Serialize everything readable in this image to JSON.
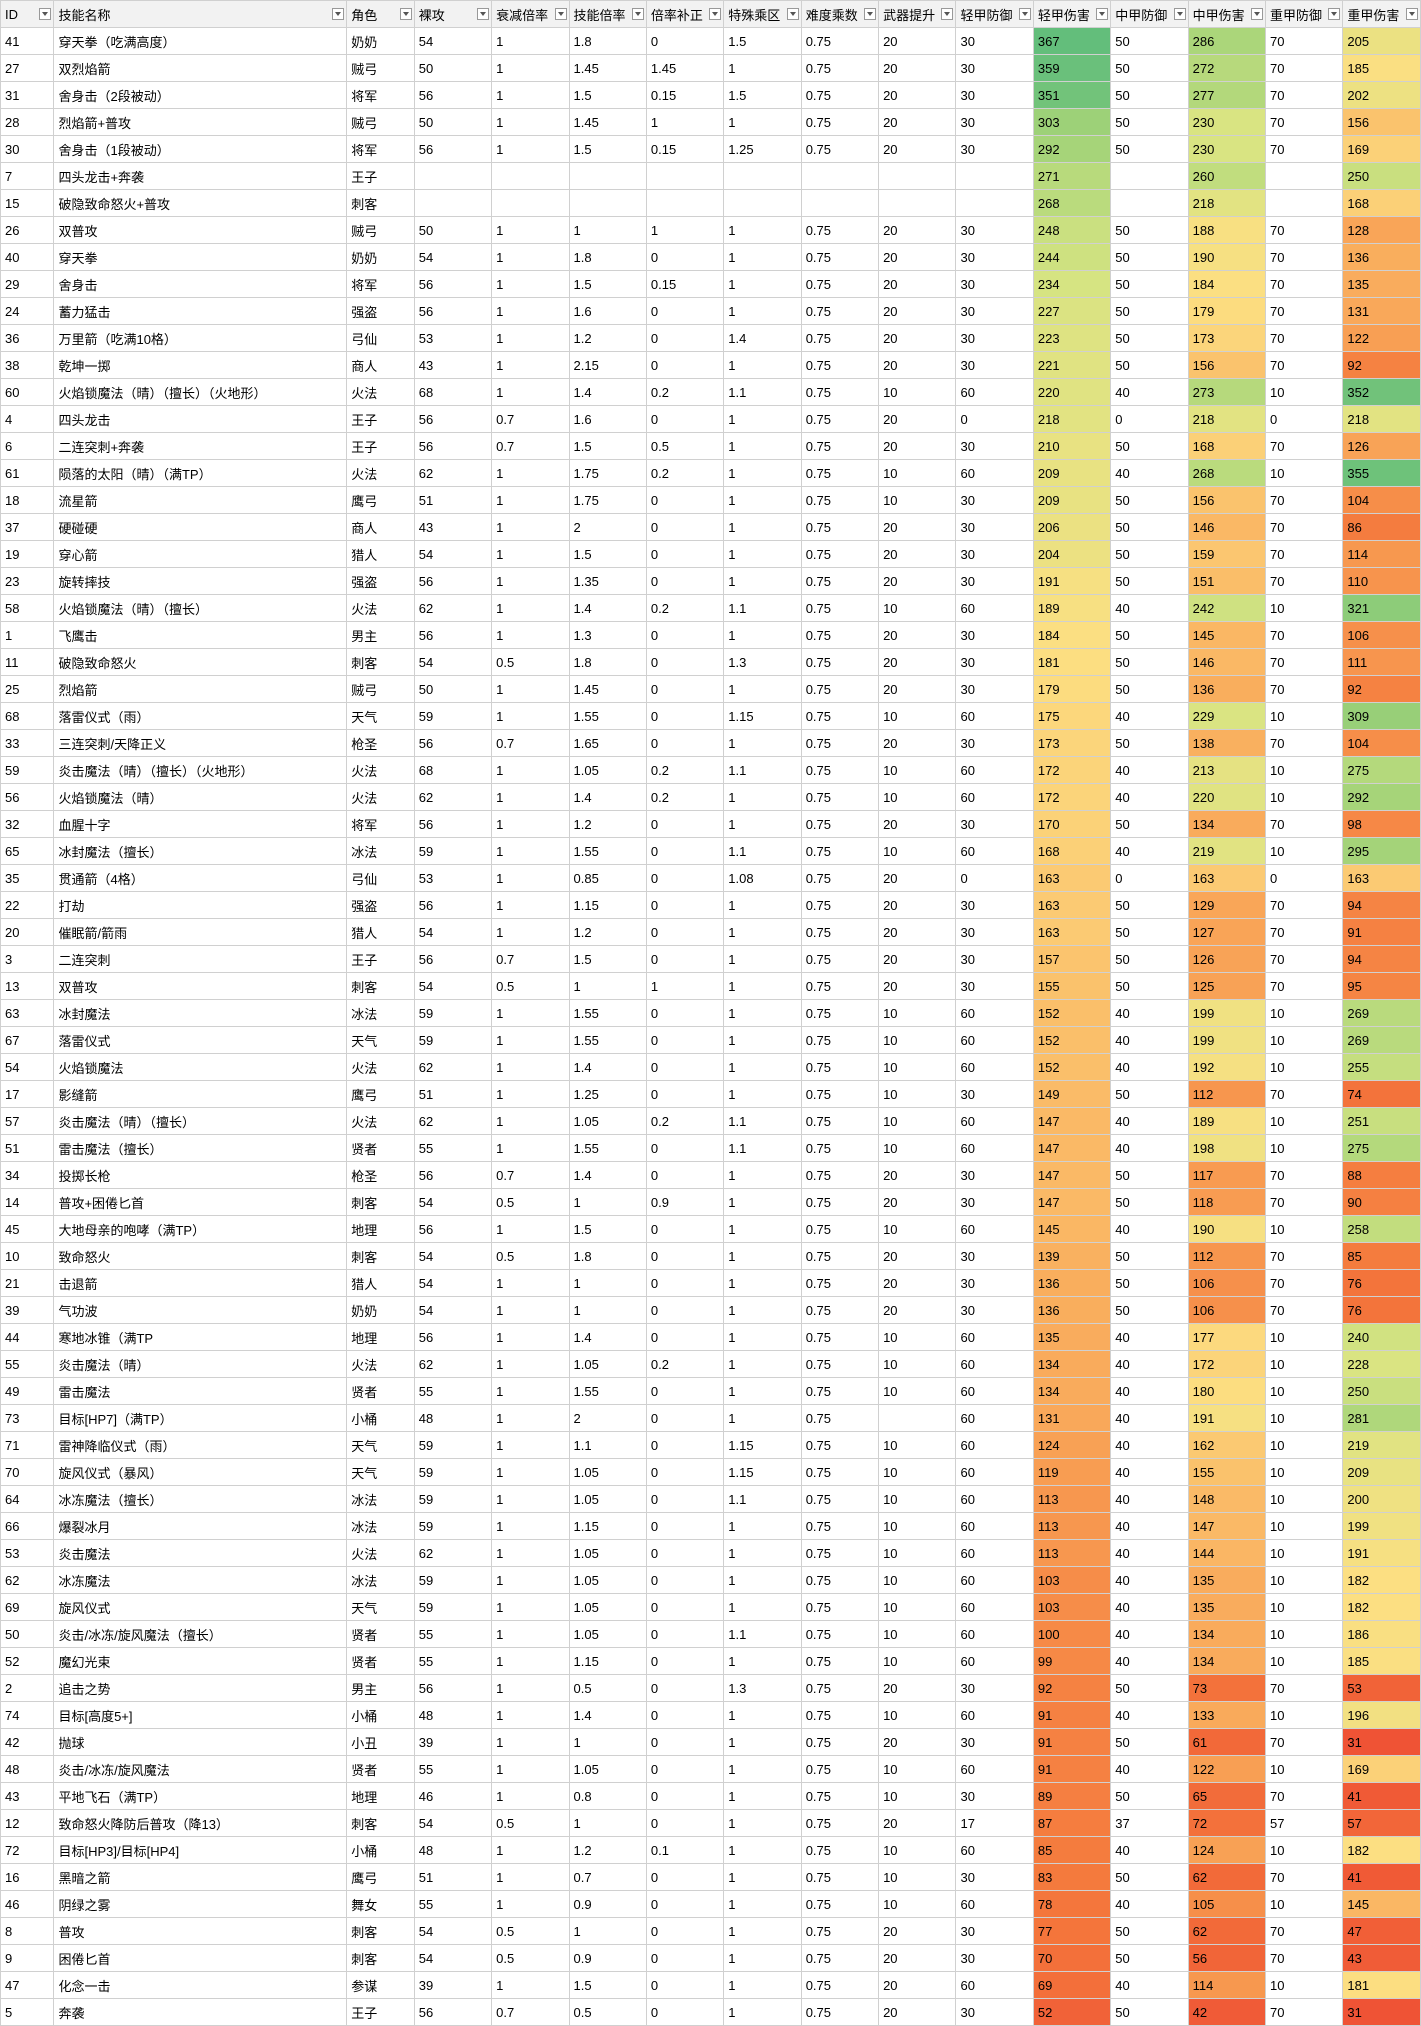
{
  "columns": [
    "ID",
    "技能名称",
    "角色",
    "裸攻",
    "衰减倍率",
    "技能倍率",
    "倍率补正",
    "特殊乘区",
    "难度乘数",
    "武器提升",
    "轻甲防御",
    "轻甲伤害",
    "中甲防御",
    "中甲伤害",
    "重甲防御",
    "重甲伤害"
  ],
  "rows": [
    [
      "41",
      "穿天拳（吃满高度）",
      "奶奶",
      "54",
      "1",
      "1.8",
      "0",
      "1.5",
      "0.75",
      "20",
      "30",
      "367",
      "50",
      "286",
      "70",
      "205"
    ],
    [
      "27",
      "双烈焰箭",
      "贼弓",
      "50",
      "1",
      "1.45",
      "1.45",
      "1",
      "0.75",
      "20",
      "30",
      "359",
      "50",
      "272",
      "70",
      "185"
    ],
    [
      "31",
      "舍身击（2段被动）",
      "将军",
      "56",
      "1",
      "1.5",
      "0.15",
      "1.5",
      "0.75",
      "20",
      "30",
      "351",
      "50",
      "277",
      "70",
      "202"
    ],
    [
      "28",
      "烈焰箭+普攻",
      "贼弓",
      "50",
      "1",
      "1.45",
      "1",
      "1",
      "0.75",
      "20",
      "30",
      "303",
      "50",
      "230",
      "70",
      "156"
    ],
    [
      "30",
      "舍身击（1段被动）",
      "将军",
      "56",
      "1",
      "1.5",
      "0.15",
      "1.25",
      "0.75",
      "20",
      "30",
      "292",
      "50",
      "230",
      "70",
      "169"
    ],
    [
      "7",
      "四头龙击+奔袭",
      "王子",
      "",
      "",
      "",
      "",
      "",
      "",
      "",
      "",
      "271",
      "",
      "260",
      "",
      "250"
    ],
    [
      "15",
      "破隐致命怒火+普攻",
      "刺客",
      "",
      "",
      "",
      "",
      "",
      "",
      "",
      "",
      "268",
      "",
      "218",
      "",
      "168"
    ],
    [
      "26",
      "双普攻",
      "贼弓",
      "50",
      "1",
      "1",
      "1",
      "1",
      "0.75",
      "20",
      "30",
      "248",
      "50",
      "188",
      "70",
      "128"
    ],
    [
      "40",
      "穿天拳",
      "奶奶",
      "54",
      "1",
      "1.8",
      "0",
      "1",
      "0.75",
      "20",
      "30",
      "244",
      "50",
      "190",
      "70",
      "136"
    ],
    [
      "29",
      "舍身击",
      "将军",
      "56",
      "1",
      "1.5",
      "0.15",
      "1",
      "0.75",
      "20",
      "30",
      "234",
      "50",
      "184",
      "70",
      "135"
    ],
    [
      "24",
      "蓄力猛击",
      "强盗",
      "56",
      "1",
      "1.6",
      "0",
      "1",
      "0.75",
      "20",
      "30",
      "227",
      "50",
      "179",
      "70",
      "131"
    ],
    [
      "36",
      "万里箭（吃满10格）",
      "弓仙",
      "53",
      "1",
      "1.2",
      "0",
      "1.4",
      "0.75",
      "20",
      "30",
      "223",
      "50",
      "173",
      "70",
      "122"
    ],
    [
      "38",
      "乾坤一掷",
      "商人",
      "43",
      "1",
      "2.15",
      "0",
      "1",
      "0.75",
      "20",
      "30",
      "221",
      "50",
      "156",
      "70",
      "92"
    ],
    [
      "60",
      "火焰锁魔法（晴）（擅长）（火地形）",
      "火法",
      "68",
      "1",
      "1.4",
      "0.2",
      "1.1",
      "0.75",
      "10",
      "60",
      "220",
      "40",
      "273",
      "10",
      "352"
    ],
    [
      "4",
      "四头龙击",
      "王子",
      "56",
      "0.7",
      "1.6",
      "0",
      "1",
      "0.75",
      "20",
      "0",
      "218",
      "0",
      "218",
      "0",
      "218"
    ],
    [
      "6",
      "二连突刺+奔袭",
      "王子",
      "56",
      "0.7",
      "1.5",
      "0.5",
      "1",
      "0.75",
      "20",
      "30",
      "210",
      "50",
      "168",
      "70",
      "126"
    ],
    [
      "61",
      "陨落的太阳（晴）（满TP）",
      "火法",
      "62",
      "1",
      "1.75",
      "0.2",
      "1",
      "0.75",
      "10",
      "60",
      "209",
      "40",
      "268",
      "10",
      "355"
    ],
    [
      "18",
      "流星箭",
      "鹰弓",
      "51",
      "1",
      "1.75",
      "0",
      "1",
      "0.75",
      "10",
      "30",
      "209",
      "50",
      "156",
      "70",
      "104"
    ],
    [
      "37",
      "硬碰硬",
      "商人",
      "43",
      "1",
      "2",
      "0",
      "1",
      "0.75",
      "20",
      "30",
      "206",
      "50",
      "146",
      "70",
      "86"
    ],
    [
      "19",
      "穿心箭",
      "猎人",
      "54",
      "1",
      "1.5",
      "0",
      "1",
      "0.75",
      "20",
      "30",
      "204",
      "50",
      "159",
      "70",
      "114"
    ],
    [
      "23",
      "旋转摔技",
      "强盗",
      "56",
      "1",
      "1.35",
      "0",
      "1",
      "0.75",
      "20",
      "30",
      "191",
      "50",
      "151",
      "70",
      "110"
    ],
    [
      "58",
      "火焰锁魔法（晴）（擅长）",
      "火法",
      "62",
      "1",
      "1.4",
      "0.2",
      "1.1",
      "0.75",
      "10",
      "60",
      "189",
      "40",
      "242",
      "10",
      "321"
    ],
    [
      "1",
      "飞鹰击",
      "男主",
      "56",
      "1",
      "1.3",
      "0",
      "1",
      "0.75",
      "20",
      "30",
      "184",
      "50",
      "145",
      "70",
      "106"
    ],
    [
      "11",
      "破隐致命怒火",
      "刺客",
      "54",
      "0.5",
      "1.8",
      "0",
      "1.3",
      "0.75",
      "20",
      "30",
      "181",
      "50",
      "146",
      "70",
      "111"
    ],
    [
      "25",
      "烈焰箭",
      "贼弓",
      "50",
      "1",
      "1.45",
      "0",
      "1",
      "0.75",
      "20",
      "30",
      "179",
      "50",
      "136",
      "70",
      "92"
    ],
    [
      "68",
      "落雷仪式（雨）",
      "天气",
      "59",
      "1",
      "1.55",
      "0",
      "1.15",
      "0.75",
      "10",
      "60",
      "175",
      "40",
      "229",
      "10",
      "309"
    ],
    [
      "33",
      "三连突刺/天降正义",
      "枪圣",
      "56",
      "0.7",
      "1.65",
      "0",
      "1",
      "0.75",
      "20",
      "30",
      "173",
      "50",
      "138",
      "70",
      "104"
    ],
    [
      "59",
      "炎击魔法（晴）（擅长）（火地形）",
      "火法",
      "68",
      "1",
      "1.05",
      "0.2",
      "1.1",
      "0.75",
      "10",
      "60",
      "172",
      "40",
      "213",
      "10",
      "275"
    ],
    [
      "56",
      "火焰锁魔法（晴）",
      "火法",
      "62",
      "1",
      "1.4",
      "0.2",
      "1",
      "0.75",
      "10",
      "60",
      "172",
      "40",
      "220",
      "10",
      "292"
    ],
    [
      "32",
      "血腥十字",
      "将军",
      "56",
      "1",
      "1.2",
      "0",
      "1",
      "0.75",
      "20",
      "30",
      "170",
      "50",
      "134",
      "70",
      "98"
    ],
    [
      "65",
      "冰封魔法（擅长）",
      "冰法",
      "59",
      "1",
      "1.55",
      "0",
      "1.1",
      "0.75",
      "10",
      "60",
      "168",
      "40",
      "219",
      "10",
      "295"
    ],
    [
      "35",
      "贯通箭（4格）",
      "弓仙",
      "53",
      "1",
      "0.85",
      "0",
      "1.08",
      "0.75",
      "20",
      "0",
      "163",
      "0",
      "163",
      "0",
      "163"
    ],
    [
      "22",
      "打劫",
      "强盗",
      "56",
      "1",
      "1.15",
      "0",
      "1",
      "0.75",
      "20",
      "30",
      "163",
      "50",
      "129",
      "70",
      "94"
    ],
    [
      "20",
      "催眠箭/箭雨",
      "猎人",
      "54",
      "1",
      "1.2",
      "0",
      "1",
      "0.75",
      "20",
      "30",
      "163",
      "50",
      "127",
      "70",
      "91"
    ],
    [
      "3",
      "二连突刺",
      "王子",
      "56",
      "0.7",
      "1.5",
      "0",
      "1",
      "0.75",
      "20",
      "30",
      "157",
      "50",
      "126",
      "70",
      "94"
    ],
    [
      "13",
      "双普攻",
      "刺客",
      "54",
      "0.5",
      "1",
      "1",
      "1",
      "0.75",
      "20",
      "30",
      "155",
      "50",
      "125",
      "70",
      "95"
    ],
    [
      "63",
      "冰封魔法",
      "冰法",
      "59",
      "1",
      "1.55",
      "0",
      "1",
      "0.75",
      "10",
      "60",
      "152",
      "40",
      "199",
      "10",
      "269"
    ],
    [
      "67",
      "落雷仪式",
      "天气",
      "59",
      "1",
      "1.55",
      "0",
      "1",
      "0.75",
      "10",
      "60",
      "152",
      "40",
      "199",
      "10",
      "269"
    ],
    [
      "54",
      "火焰锁魔法",
      "火法",
      "62",
      "1",
      "1.4",
      "0",
      "1",
      "0.75",
      "10",
      "60",
      "152",
      "40",
      "192",
      "10",
      "255"
    ],
    [
      "17",
      "影缝箭",
      "鹰弓",
      "51",
      "1",
      "1.25",
      "0",
      "1",
      "0.75",
      "10",
      "30",
      "149",
      "50",
      "112",
      "70",
      "74"
    ],
    [
      "57",
      "炎击魔法（晴）（擅长）",
      "火法",
      "62",
      "1",
      "1.05",
      "0.2",
      "1.1",
      "0.75",
      "10",
      "60",
      "147",
      "40",
      "189",
      "10",
      "251"
    ],
    [
      "51",
      "雷击魔法（擅长）",
      "贤者",
      "55",
      "1",
      "1.55",
      "0",
      "1.1",
      "0.75",
      "10",
      "60",
      "147",
      "40",
      "198",
      "10",
      "275"
    ],
    [
      "34",
      "投掷长枪",
      "枪圣",
      "56",
      "0.7",
      "1.4",
      "0",
      "1",
      "0.75",
      "20",
      "30",
      "147",
      "50",
      "117",
      "70",
      "88"
    ],
    [
      "14",
      "普攻+困倦匕首",
      "刺客",
      "54",
      "0.5",
      "1",
      "0.9",
      "1",
      "0.75",
      "20",
      "30",
      "147",
      "50",
      "118",
      "70",
      "90"
    ],
    [
      "45",
      "大地母亲的咆哮（满TP）",
      "地理",
      "56",
      "1",
      "1.5",
      "0",
      "1",
      "0.75",
      "10",
      "60",
      "145",
      "40",
      "190",
      "10",
      "258"
    ],
    [
      "10",
      "致命怒火",
      "刺客",
      "54",
      "0.5",
      "1.8",
      "0",
      "1",
      "0.75",
      "20",
      "30",
      "139",
      "50",
      "112",
      "70",
      "85"
    ],
    [
      "21",
      "击退箭",
      "猎人",
      "54",
      "1",
      "1",
      "0",
      "1",
      "0.75",
      "20",
      "30",
      "136",
      "50",
      "106",
      "70",
      "76"
    ],
    [
      "39",
      "气功波",
      "奶奶",
      "54",
      "1",
      "1",
      "0",
      "1",
      "0.75",
      "20",
      "30",
      "136",
      "50",
      "106",
      "70",
      "76"
    ],
    [
      "44",
      "寒地冰锥（满TP",
      "地理",
      "56",
      "1",
      "1.4",
      "0",
      "1",
      "0.75",
      "10",
      "60",
      "135",
      "40",
      "177",
      "10",
      "240"
    ],
    [
      "55",
      "炎击魔法（晴）",
      "火法",
      "62",
      "1",
      "1.05",
      "0.2",
      "1",
      "0.75",
      "10",
      "60",
      "134",
      "40",
      "172",
      "10",
      "228"
    ],
    [
      "49",
      "雷击魔法",
      "贤者",
      "55",
      "1",
      "1.55",
      "0",
      "1",
      "0.75",
      "10",
      "60",
      "134",
      "40",
      "180",
      "10",
      "250"
    ],
    [
      "73",
      "目标[HP7]（满TP）",
      "小桶",
      "48",
      "1",
      "2",
      "0",
      "1",
      "0.75",
      "",
      "60",
      "131",
      "40",
      "191",
      "10",
      "281"
    ],
    [
      "71",
      "雷神降临仪式（雨）",
      "天气",
      "59",
      "1",
      "1.1",
      "0",
      "1.15",
      "0.75",
      "10",
      "60",
      "124",
      "40",
      "162",
      "10",
      "219"
    ],
    [
      "70",
      "旋风仪式（暴风）",
      "天气",
      "59",
      "1",
      "1.05",
      "0",
      "1.15",
      "0.75",
      "10",
      "60",
      "119",
      "40",
      "155",
      "10",
      "209"
    ],
    [
      "64",
      "冰冻魔法（擅长）",
      "冰法",
      "59",
      "1",
      "1.05",
      "0",
      "1.1",
      "0.75",
      "10",
      "60",
      "113",
      "40",
      "148",
      "10",
      "200"
    ],
    [
      "66",
      "爆裂冰月",
      "冰法",
      "59",
      "1",
      "1.15",
      "0",
      "1",
      "0.75",
      "10",
      "60",
      "113",
      "40",
      "147",
      "10",
      "199"
    ],
    [
      "53",
      "炎击魔法",
      "火法",
      "62",
      "1",
      "1.05",
      "0",
      "1",
      "0.75",
      "10",
      "60",
      "113",
      "40",
      "144",
      "10",
      "191"
    ],
    [
      "62",
      "冰冻魔法",
      "冰法",
      "59",
      "1",
      "1.05",
      "0",
      "1",
      "0.75",
      "10",
      "60",
      "103",
      "40",
      "135",
      "10",
      "182"
    ],
    [
      "69",
      "旋风仪式",
      "天气",
      "59",
      "1",
      "1.05",
      "0",
      "1",
      "0.75",
      "10",
      "60",
      "103",
      "40",
      "135",
      "10",
      "182"
    ],
    [
      "50",
      "炎击/冰冻/旋风魔法（擅长）",
      "贤者",
      "55",
      "1",
      "1.05",
      "0",
      "1.1",
      "0.75",
      "10",
      "60",
      "100",
      "40",
      "134",
      "10",
      "186"
    ],
    [
      "52",
      "魔幻光束",
      "贤者",
      "55",
      "1",
      "1.15",
      "0",
      "1",
      "0.75",
      "10",
      "60",
      "99",
      "40",
      "134",
      "10",
      "185"
    ],
    [
      "2",
      "追击之势",
      "男主",
      "56",
      "1",
      "0.5",
      "0",
      "1.3",
      "0.75",
      "20",
      "30",
      "92",
      "50",
      "73",
      "70",
      "53"
    ],
    [
      "74",
      "目标[高度5+]",
      "小桶",
      "48",
      "1",
      "1.4",
      "0",
      "1",
      "0.75",
      "10",
      "60",
      "91",
      "40",
      "133",
      "10",
      "196"
    ],
    [
      "42",
      "抛球",
      "小丑",
      "39",
      "1",
      "1",
      "0",
      "1",
      "0.75",
      "20",
      "30",
      "91",
      "50",
      "61",
      "70",
      "31"
    ],
    [
      "48",
      "炎击/冰冻/旋风魔法",
      "贤者",
      "55",
      "1",
      "1.05",
      "0",
      "1",
      "0.75",
      "10",
      "60",
      "91",
      "40",
      "122",
      "10",
      "169"
    ],
    [
      "43",
      "平地飞石（满TP）",
      "地理",
      "46",
      "1",
      "0.8",
      "0",
      "1",
      "0.75",
      "10",
      "30",
      "89",
      "50",
      "65",
      "70",
      "41"
    ],
    [
      "12",
      "致命怒火降防后普攻（降13）",
      "刺客",
      "54",
      "0.5",
      "1",
      "0",
      "1",
      "0.75",
      "20",
      "17",
      "87",
      "37",
      "72",
      "57",
      "57"
    ],
    [
      "72",
      "目标[HP3]/目标[HP4]",
      "小桶",
      "48",
      "1",
      "1.2",
      "0.1",
      "1",
      "0.75",
      "10",
      "60",
      "85",
      "40",
      "124",
      "10",
      "182"
    ],
    [
      "16",
      "黑暗之箭",
      "鹰弓",
      "51",
      "1",
      "0.7",
      "0",
      "1",
      "0.75",
      "10",
      "30",
      "83",
      "50",
      "62",
      "70",
      "41"
    ],
    [
      "46",
      "阴绿之雾",
      "舞女",
      "55",
      "1",
      "0.9",
      "0",
      "1",
      "0.75",
      "10",
      "60",
      "78",
      "40",
      "105",
      "10",
      "145"
    ],
    [
      "8",
      "普攻",
      "刺客",
      "54",
      "0.5",
      "1",
      "0",
      "1",
      "0.75",
      "20",
      "30",
      "77",
      "50",
      "62",
      "70",
      "47"
    ],
    [
      "9",
      "困倦匕首",
      "刺客",
      "54",
      "0.5",
      "0.9",
      "0",
      "1",
      "0.75",
      "20",
      "30",
      "70",
      "50",
      "56",
      "70",
      "43"
    ],
    [
      "47",
      "化念一击",
      "参谋",
      "39",
      "1",
      "1.5",
      "0",
      "1",
      "0.75",
      "20",
      "60",
      "69",
      "40",
      "114",
      "10",
      "181"
    ],
    [
      "5",
      "奔袭",
      "王子",
      "56",
      "0.7",
      "0.5",
      "0",
      "1",
      "0.75",
      "20",
      "30",
      "52",
      "50",
      "42",
      "70",
      "31"
    ]
  ],
  "dmgCols": [
    11,
    13,
    15
  ],
  "min": 31,
  "max": 367
}
